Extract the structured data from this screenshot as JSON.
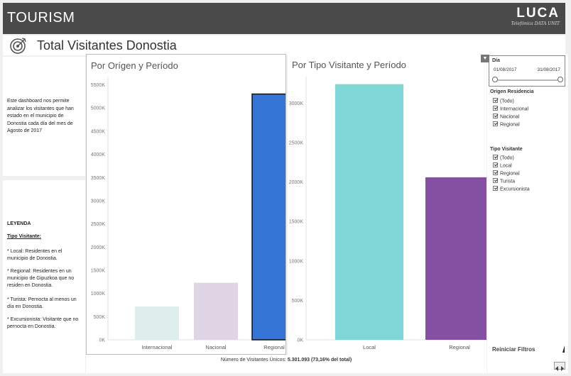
{
  "header": {
    "title": "TOURISM",
    "brand_name": "LUCA",
    "brand_subtitle": "Telefónica DATA UNIT"
  },
  "page": {
    "title": "Total Visitantes Donostia",
    "icon": "target-icon"
  },
  "description": "Este dashboard nos permite analizar los visitantes que han estado en el municipio de Donostia cada día del mes de Agosto de 2017",
  "legend": {
    "title": "LEYENDA",
    "subtitle": "Tipo Visitante:",
    "items": [
      "* Local: Residentes en el municipio de Donostia.",
      "* Regional: Residentes en un municipio de Gipuzkoa que no residen en Donostia.",
      "* Turista: Pernocta al menos un día en Donostia.",
      "* Excursionista: Visitante que no pernocta en Donostia."
    ]
  },
  "chart_data": [
    {
      "type": "bar",
      "title": "Por Orígen y Período",
      "categories": [
        "Internacional",
        "Nacional",
        "Regional"
      ],
      "values": [
        720000,
        1230000,
        5301093
      ],
      "colors": [
        "#dfeeed",
        "#e0d5e5",
        "#3575d5"
      ],
      "highlighted": "Regional",
      "ylim": [
        0,
        5600000
      ],
      "yticks": [
        "0K",
        "500K",
        "1000K",
        "1500K",
        "2000K",
        "2500K",
        "3000K",
        "3500K",
        "4000K",
        "4500K",
        "5000K",
        "5500K"
      ],
      "ytick_values": [
        0,
        500000,
        1000000,
        1500000,
        2000000,
        2500000,
        3000000,
        3500000,
        4000000,
        4500000,
        5000000,
        5500000
      ],
      "grid": false
    },
    {
      "type": "bar",
      "title": "Por Tipo Visitante  y Período",
      "categories": [
        "Local",
        "Regional"
      ],
      "values": [
        3240000,
        2060000
      ],
      "colors": [
        "#7fd6d6",
        "#8450a2"
      ],
      "ylim": [
        0,
        3300000
      ],
      "yticks": [
        "0K",
        "500K",
        "1000K",
        "1500K",
        "2000K",
        "2500K",
        "3000K"
      ],
      "ytick_values": [
        0,
        500000,
        1000000,
        1500000,
        2000000,
        2500000,
        3000000
      ],
      "grid": false
    }
  ],
  "footer": {
    "label": "Número de Visitantes Únicos:",
    "value": "5.301.093 (73,16% del total)"
  },
  "filters": {
    "dia": {
      "label": "Día",
      "start": "01/08/2017",
      "end": "31/08/2017"
    },
    "origen": {
      "label": "Origen Residencia",
      "options": [
        "(Todo)",
        "Internacional",
        "Nacional",
        "Regional"
      ]
    },
    "tipo": {
      "label": "Tipo Visitante",
      "options": [
        "(Todo)",
        "Local",
        "Regional",
        "Turista",
        "Excursionista"
      ]
    },
    "reset_label": "Reiniciar Filtros"
  }
}
